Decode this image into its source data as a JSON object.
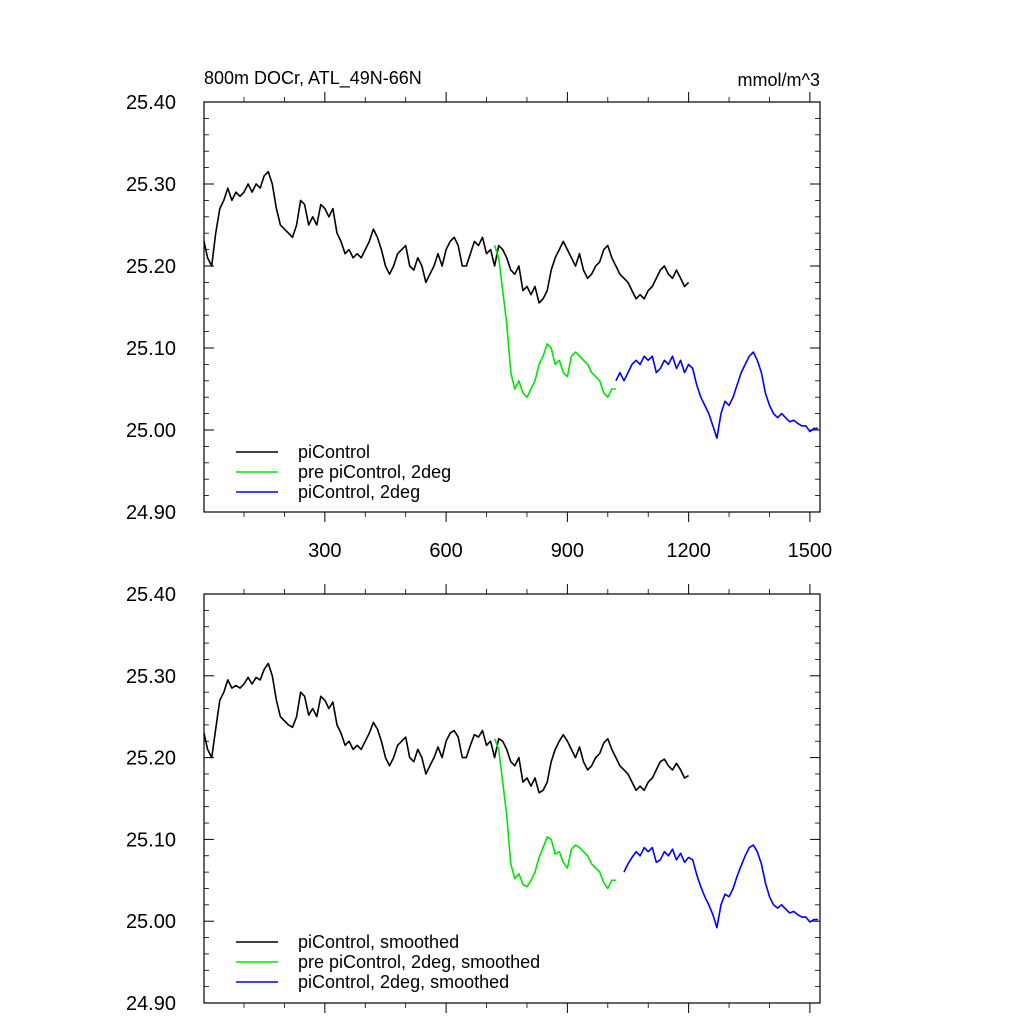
{
  "chart_data": [
    {
      "type": "line",
      "title": "800m DOCr, ATL_49N-66N",
      "units": "mmol/m^3",
      "xlim": [
        1,
        1525
      ],
      "ylim": [
        24.9,
        25.4
      ],
      "x_ticks": [
        300,
        600,
        900,
        1200,
        1500
      ],
      "y_ticks": [
        24.9,
        25.0,
        25.1,
        25.2,
        25.3,
        25.4
      ],
      "y_tick_labels": [
        "24.90",
        "25.00",
        "25.10",
        "25.20",
        "25.30",
        "25.40"
      ],
      "x_tick_labels": [
        "300",
        "600",
        "900",
        "1200",
        "1500"
      ],
      "legend_position": "bottom-left",
      "series": [
        {
          "name": "piControl",
          "color": "#000000",
          "x": [
            1,
            10,
            20,
            30,
            40,
            50,
            60,
            70,
            80,
            90,
            100,
            110,
            120,
            130,
            140,
            150,
            160,
            170,
            180,
            190,
            200,
            210,
            220,
            230,
            240,
            250,
            260,
            270,
            280,
            290,
            300,
            310,
            320,
            330,
            340,
            350,
            360,
            370,
            380,
            390,
            400,
            410,
            420,
            430,
            440,
            450,
            460,
            470,
            480,
            490,
            500,
            510,
            520,
            530,
            540,
            550,
            560,
            570,
            580,
            590,
            600,
            610,
            620,
            630,
            640,
            650,
            660,
            670,
            680,
            690,
            700,
            710,
            720,
            730,
            740,
            750,
            760,
            770,
            780,
            790,
            800,
            810,
            820,
            830,
            840,
            850,
            860,
            870,
            880,
            890,
            900,
            910,
            920,
            930,
            940,
            950,
            960,
            970,
            980,
            990,
            1000,
            1010,
            1020,
            1030,
            1040,
            1050,
            1060,
            1070,
            1080,
            1090,
            1100,
            1110,
            1120,
            1130,
            1140,
            1150,
            1160,
            1170,
            1180,
            1190,
            1200
          ],
          "y": [
            25.23,
            25.21,
            25.2,
            25.24,
            25.27,
            25.28,
            25.295,
            25.28,
            25.29,
            25.285,
            25.29,
            25.3,
            25.29,
            25.3,
            25.295,
            25.31,
            25.315,
            25.3,
            25.27,
            25.25,
            25.245,
            25.24,
            25.235,
            25.25,
            25.28,
            25.275,
            25.25,
            25.26,
            25.25,
            25.275,
            25.27,
            25.26,
            25.27,
            25.24,
            25.23,
            25.215,
            25.22,
            25.21,
            25.215,
            25.21,
            25.22,
            25.23,
            25.245,
            25.235,
            25.22,
            25.2,
            25.19,
            25.2,
            25.215,
            25.22,
            25.225,
            25.2,
            25.195,
            25.21,
            25.2,
            25.18,
            25.19,
            25.2,
            25.215,
            25.2,
            25.22,
            25.23,
            25.235,
            25.225,
            25.2,
            25.2,
            25.215,
            25.23,
            25.225,
            25.235,
            25.215,
            25.22,
            25.2,
            25.225,
            25.22,
            25.21,
            25.195,
            25.19,
            25.2,
            25.17,
            25.175,
            25.165,
            25.175,
            25.155,
            25.16,
            25.17,
            25.195,
            25.21,
            25.22,
            25.23,
            25.22,
            25.21,
            25.2,
            25.215,
            25.195,
            25.185,
            25.19,
            25.2,
            25.205,
            25.22,
            25.225,
            25.21,
            25.2,
            25.19,
            25.185,
            25.18,
            25.17,
            25.16,
            25.165,
            25.16,
            25.17,
            25.175,
            25.185,
            25.195,
            25.2,
            25.19,
            25.185,
            25.195,
            25.185,
            25.175,
            25.18
          ]
        },
        {
          "name": "pre piControl, 2deg",
          "color": "#00e600",
          "x": [
            720,
            730,
            740,
            750,
            760,
            770,
            780,
            790,
            800,
            810,
            820,
            830,
            840,
            850,
            860,
            870,
            880,
            890,
            900,
            910,
            920,
            930,
            940,
            950,
            960,
            970,
            980,
            990,
            1000,
            1010,
            1020
          ],
          "y": [
            25.225,
            25.21,
            25.17,
            25.13,
            25.07,
            25.05,
            25.06,
            25.045,
            25.04,
            25.05,
            25.06,
            25.08,
            25.09,
            25.105,
            25.1,
            25.08,
            25.085,
            25.07,
            25.065,
            25.09,
            25.095,
            25.09,
            25.085,
            25.08,
            25.07,
            25.065,
            25.06,
            25.045,
            25.04,
            25.05,
            25.05
          ]
        },
        {
          "name": "piControl, 2deg",
          "color": "#0000ff",
          "x": [
            1020,
            1030,
            1040,
            1050,
            1060,
            1070,
            1080,
            1090,
            1100,
            1110,
            1120,
            1130,
            1140,
            1150,
            1160,
            1170,
            1180,
            1190,
            1200,
            1210,
            1220,
            1230,
            1240,
            1250,
            1260,
            1270,
            1280,
            1290,
            1300,
            1310,
            1320,
            1330,
            1340,
            1350,
            1360,
            1370,
            1380,
            1390,
            1400,
            1410,
            1420,
            1430,
            1440,
            1450,
            1460,
            1470,
            1480,
            1490,
            1500,
            1510,
            1520
          ],
          "y": [
            25.06,
            25.07,
            25.06,
            25.07,
            25.08,
            25.085,
            25.08,
            25.09,
            25.085,
            25.09,
            25.07,
            25.075,
            25.085,
            25.08,
            25.09,
            25.075,
            25.085,
            25.07,
            25.08,
            25.075,
            25.055,
            25.04,
            25.03,
            25.02,
            25.005,
            24.99,
            25.02,
            25.035,
            25.03,
            25.04,
            25.055,
            25.07,
            25.08,
            25.09,
            25.095,
            25.085,
            25.07,
            25.045,
            25.03,
            25.02,
            25.015,
            25.02,
            25.015,
            25.01,
            25.012,
            25.008,
            25.005,
            25.005,
            24.998,
            25.002,
            25.002
          ]
        }
      ]
    },
    {
      "type": "line",
      "xlim": [
        1,
        1525
      ],
      "ylim": [
        24.9,
        25.4
      ],
      "x_ticks": [
        300,
        600,
        900,
        1200,
        1500
      ],
      "y_ticks": [
        24.9,
        25.0,
        25.1,
        25.2,
        25.3,
        25.4
      ],
      "y_tick_labels": [
        "24.90",
        "25.00",
        "25.10",
        "25.20",
        "25.30",
        "25.40"
      ],
      "legend_position": "bottom-left",
      "series": [
        {
          "name": "piControl, smoothed",
          "color": "#000000",
          "x": [
            1,
            10,
            20,
            30,
            40,
            50,
            60,
            70,
            80,
            90,
            100,
            110,
            120,
            130,
            140,
            150,
            160,
            170,
            180,
            190,
            200,
            210,
            220,
            230,
            240,
            250,
            260,
            270,
            280,
            290,
            300,
            310,
            320,
            330,
            340,
            350,
            360,
            370,
            380,
            390,
            400,
            410,
            420,
            430,
            440,
            450,
            460,
            470,
            480,
            490,
            500,
            510,
            520,
            530,
            540,
            550,
            560,
            570,
            580,
            590,
            600,
            610,
            620,
            630,
            640,
            650,
            660,
            670,
            680,
            690,
            700,
            710,
            720,
            730,
            740,
            750,
            760,
            770,
            780,
            790,
            800,
            810,
            820,
            830,
            840,
            850,
            860,
            870,
            880,
            890,
            900,
            910,
            920,
            930,
            940,
            950,
            960,
            970,
            980,
            990,
            1000,
            1010,
            1020,
            1030,
            1040,
            1050,
            1060,
            1070,
            1080,
            1090,
            1100,
            1110,
            1120,
            1130,
            1140,
            1150,
            1160,
            1170,
            1180,
            1190,
            1200
          ],
          "y": [
            25.23,
            25.21,
            25.2,
            25.235,
            25.27,
            25.28,
            25.295,
            25.285,
            25.288,
            25.285,
            25.29,
            25.298,
            25.29,
            25.298,
            25.295,
            25.308,
            25.315,
            25.3,
            25.27,
            25.25,
            25.245,
            25.24,
            25.237,
            25.25,
            25.28,
            25.275,
            25.252,
            25.26,
            25.25,
            25.275,
            25.27,
            25.26,
            25.268,
            25.24,
            25.23,
            25.215,
            25.22,
            25.21,
            25.215,
            25.21,
            25.22,
            25.23,
            25.243,
            25.235,
            25.22,
            25.2,
            25.19,
            25.2,
            25.215,
            25.22,
            25.225,
            25.2,
            25.195,
            25.21,
            25.2,
            25.18,
            25.19,
            25.2,
            25.213,
            25.2,
            25.22,
            25.23,
            25.233,
            25.225,
            25.2,
            25.2,
            25.215,
            25.228,
            25.225,
            25.233,
            25.215,
            25.22,
            25.2,
            25.223,
            25.22,
            25.21,
            25.195,
            25.19,
            25.2,
            25.17,
            25.175,
            25.165,
            25.175,
            25.157,
            25.16,
            25.17,
            25.195,
            25.21,
            25.22,
            25.228,
            25.22,
            25.21,
            25.2,
            25.213,
            25.195,
            25.185,
            25.19,
            25.2,
            25.205,
            25.218,
            25.223,
            25.21,
            25.2,
            25.19,
            25.185,
            25.18,
            25.17,
            25.16,
            25.165,
            25.16,
            25.17,
            25.175,
            25.185,
            25.195,
            25.198,
            25.19,
            25.185,
            25.193,
            25.185,
            25.175,
            25.178
          ]
        },
        {
          "name": "pre piControl, 2deg, smoothed",
          "color": "#00e600",
          "x": [
            720,
            730,
            740,
            750,
            760,
            770,
            780,
            790,
            800,
            810,
            820,
            830,
            840,
            850,
            860,
            870,
            880,
            890,
            900,
            910,
            920,
            930,
            940,
            950,
            960,
            970,
            980,
            990,
            1000,
            1010,
            1020
          ],
          "y": [
            25.223,
            25.21,
            25.17,
            25.13,
            25.07,
            25.052,
            25.058,
            25.045,
            25.042,
            25.05,
            25.06,
            25.078,
            25.09,
            25.103,
            25.1,
            25.082,
            25.085,
            25.072,
            25.065,
            25.088,
            25.093,
            25.09,
            25.085,
            25.08,
            25.07,
            25.065,
            25.06,
            25.047,
            25.04,
            25.05,
            25.05
          ]
        },
        {
          "name": "piControl, 2deg, smoothed",
          "color": "#0000ff",
          "x": [
            1040,
            1050,
            1060,
            1070,
            1080,
            1090,
            1100,
            1110,
            1120,
            1130,
            1140,
            1150,
            1160,
            1170,
            1180,
            1190,
            1200,
            1210,
            1220,
            1230,
            1240,
            1250,
            1260,
            1270,
            1280,
            1290,
            1300,
            1310,
            1320,
            1330,
            1340,
            1350,
            1360,
            1370,
            1380,
            1390,
            1400,
            1410,
            1420,
            1430,
            1440,
            1450,
            1460,
            1470,
            1480,
            1490,
            1500,
            1510,
            1520
          ],
          "y": [
            25.06,
            25.07,
            25.078,
            25.085,
            25.08,
            25.09,
            25.085,
            25.09,
            25.072,
            25.075,
            25.085,
            25.08,
            25.088,
            25.075,
            25.083,
            25.072,
            25.078,
            25.075,
            25.057,
            25.042,
            25.03,
            25.02,
            25.008,
            24.992,
            25.02,
            25.033,
            25.03,
            25.04,
            25.055,
            25.068,
            25.08,
            25.09,
            25.093,
            25.085,
            25.07,
            25.047,
            25.03,
            25.02,
            25.016,
            25.02,
            25.015,
            25.01,
            25.012,
            25.008,
            25.005,
            25.005,
            24.999,
            25.002,
            25.002
          ]
        }
      ]
    }
  ]
}
